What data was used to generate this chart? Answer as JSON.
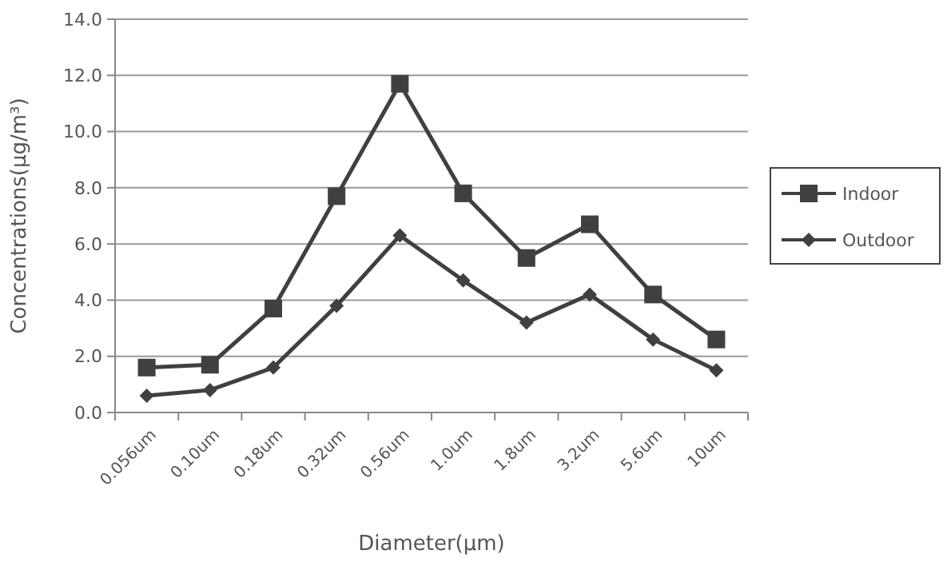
{
  "chart_data": {
    "type": "line",
    "xlabel": "Diameter(μm)",
    "ylabel": "Concentrations(μg/m³)",
    "categories": [
      "0.056um",
      "0.10um",
      "0.18um",
      "0.32um",
      "0.56um",
      "1.0um",
      "1.8um",
      "3.2um",
      "5.6um",
      "10um"
    ],
    "series": [
      {
        "name": "Indoor",
        "color": "#404040",
        "marker": "square",
        "values": [
          1.6,
          1.7,
          3.7,
          7.7,
          11.7,
          7.8,
          5.5,
          6.7,
          4.2,
          2.6
        ]
      },
      {
        "name": "Outdoor",
        "color": "#404040",
        "marker": "diamond",
        "values": [
          0.6,
          0.8,
          1.6,
          3.8,
          6.3,
          4.7,
          3.2,
          4.2,
          2.6,
          1.5
        ]
      }
    ],
    "ylim": [
      0,
      14
    ],
    "yticks": [
      {
        "value": 0,
        "label": "0.0"
      },
      {
        "value": 2,
        "label": "2.0"
      },
      {
        "value": 4,
        "label": "4.0"
      },
      {
        "value": 6,
        "label": "6.0"
      },
      {
        "value": 8,
        "label": "8.0"
      },
      {
        "value": 10,
        "label": "10.0"
      },
      {
        "value": 12,
        "label": "12.0"
      },
      {
        "value": 14,
        "label": "14.0"
      }
    ],
    "grid": "y",
    "legend": "right"
  }
}
